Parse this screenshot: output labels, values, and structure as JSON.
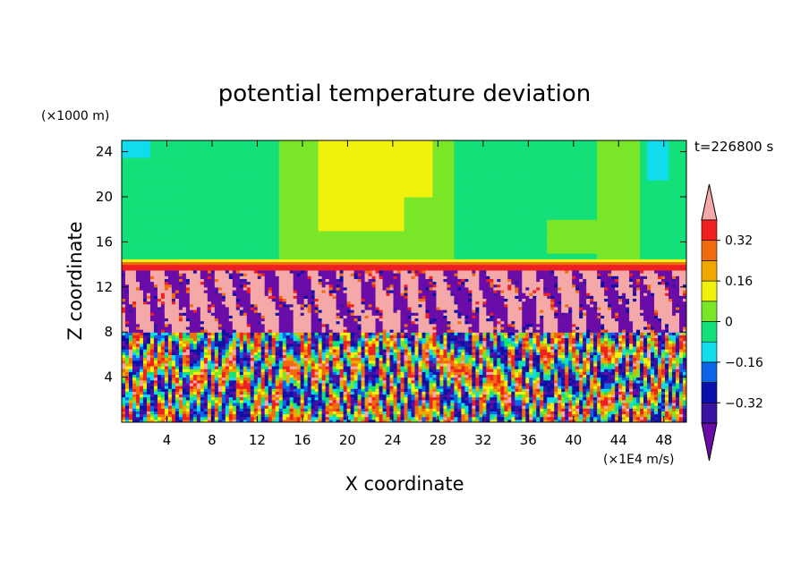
{
  "chart_data": {
    "type": "heatmap",
    "title": "potential temperature deviation",
    "xlabel": "X coordinate",
    "ylabel": "Z coordinate",
    "x_units": "(×1E4 m/s)",
    "y_units": "(×1000 m)",
    "time_label": "t=226800 s",
    "xlim": [
      0,
      50
    ],
    "ylim": [
      0,
      25
    ],
    "x_ticks": [
      "4",
      "8",
      "12",
      "16",
      "20",
      "24",
      "28",
      "32",
      "36",
      "40",
      "44",
      "48"
    ],
    "y_ticks": [
      "4",
      "8",
      "12",
      "16",
      "20",
      "24"
    ],
    "colorbar": {
      "labels": [
        "0.32",
        "0.16",
        "0",
        "−0.16",
        "−0.32"
      ],
      "levels": [
        -0.4,
        -0.32,
        -0.24,
        -0.16,
        -0.08,
        0,
        0.08,
        0.16,
        0.24,
        0.32,
        0.4
      ],
      "colors": [
        "#6a0ca8",
        "#3a14a0",
        "#0a10a8",
        "#0a66e6",
        "#10dcec",
        "#14e07a",
        "#7ae628",
        "#f0f20e",
        "#f0a800",
        "#f06a10",
        "#ee2020",
        "#f4a8a8"
      ],
      "extend": "both"
    },
    "regions": [
      {
        "z_range": [
          0,
          8
        ],
        "description_values": "oscillating cells, range -0.4 to 0.4"
      },
      {
        "z_range": [
          8,
          14
        ],
        "description_values": "mixed, values ~0.4 and ~-0.4"
      },
      {
        "z_range": [
          14,
          25
        ],
        "description_values": "near 0, some 0 to 0.16"
      }
    ]
  }
}
